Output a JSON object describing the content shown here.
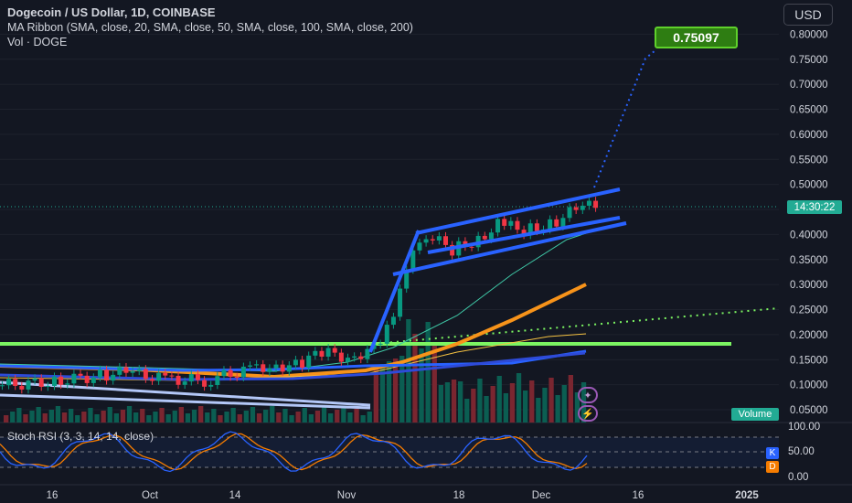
{
  "header": {
    "title": "Dogecoin / US Dollar, 1D, COINBASE",
    "ma_ribbon": "MA Ribbon (SMA, close, 20, SMA, close, 50, SMA, close, 100, SMA, close, 200)",
    "vol": "Vol · DOGE"
  },
  "currency_button": "USD",
  "target_label": "0.75097",
  "current_time_label": "14:30:22",
  "volume_label": "Volume",
  "stoch_rsi": {
    "label": "Stoch RSI (3, 3, 14, 14, close)",
    "k_label": "K",
    "d_label": "D",
    "ticks": [
      "100.00",
      "50.00",
      "0.00"
    ],
    "k_color": "#2962ff",
    "d_color": "#f57c00"
  },
  "colors": {
    "up": "#089981",
    "down": "#f23645",
    "channel": "#2962ff",
    "green_line": "#7cf562",
    "orange_ma": "#f7931a"
  },
  "icons": [
    "sparkle-icon",
    "lightning-icon"
  ],
  "chart_data": {
    "type": "line",
    "title": "Dogecoin / US Dollar, 1D, COINBASE",
    "y_ticks": [
      "0.80000",
      "0.75000",
      "0.70000",
      "0.65000",
      "0.60000",
      "0.55000",
      "0.50000",
      "0.45000",
      "0.40000",
      "0.35000",
      "0.30000",
      "0.25000",
      "0.20000",
      "0.15000",
      "0.10000",
      "0.05000"
    ],
    "x_ticks": [
      "16",
      "Oct",
      "14",
      "Nov",
      "18",
      "Dec",
      "16",
      "2025"
    ],
    "ylim": [
      0.0,
      0.82
    ],
    "target_price": 0.75097,
    "price_series": [
      {
        "date": "2024-09-08",
        "close": 0.098
      },
      {
        "date": "2024-09-16",
        "close": 0.105
      },
      {
        "date": "2024-09-24",
        "close": 0.118
      },
      {
        "date": "2024-09-28",
        "close": 0.125
      },
      {
        "date": "2024-10-04",
        "close": 0.112
      },
      {
        "date": "2024-10-10",
        "close": 0.108
      },
      {
        "date": "2024-10-16",
        "close": 0.128
      },
      {
        "date": "2024-10-20",
        "close": 0.138
      },
      {
        "date": "2024-10-24",
        "close": 0.138
      },
      {
        "date": "2024-10-28",
        "close": 0.165
      },
      {
        "date": "2024-11-01",
        "close": 0.155
      },
      {
        "date": "2024-11-05",
        "close": 0.17
      },
      {
        "date": "2024-11-08",
        "close": 0.23
      },
      {
        "date": "2024-11-11",
        "close": 0.38
      },
      {
        "date": "2024-11-13",
        "close": 0.4
      },
      {
        "date": "2024-11-17",
        "close": 0.37
      },
      {
        "date": "2024-11-21",
        "close": 0.39
      },
      {
        "date": "2024-11-24",
        "close": 0.42
      },
      {
        "date": "2024-11-28",
        "close": 0.41
      },
      {
        "date": "2024-12-02",
        "close": 0.42
      },
      {
        "date": "2024-12-06",
        "close": 0.45
      },
      {
        "date": "2024-12-09",
        "close": 0.46
      }
    ],
    "lines": [
      {
        "name": "green-horizontal",
        "color": "#7cf562",
        "points": [
          [
            "2024-09-01",
            0.18
          ],
          [
            "2025-01-01",
            0.18
          ]
        ]
      },
      {
        "name": "green-dotted-projection",
        "color": "#7cf562",
        "points": [
          [
            "2024-11-08",
            0.18
          ],
          [
            "2025-01-01",
            0.25
          ]
        ]
      },
      {
        "name": "orange-ma",
        "color": "#f7931a",
        "points": [
          [
            "2024-09-01",
            0.108
          ],
          [
            "2024-10-01",
            0.104
          ],
          [
            "2024-11-01",
            0.118
          ],
          [
            "2024-11-20",
            0.2
          ],
          [
            "2024-12-10",
            0.298
          ]
        ]
      },
      {
        "name": "blue-ma",
        "color": "#2962ff",
        "points": [
          [
            "2024-09-01",
            0.138
          ],
          [
            "2024-10-14",
            0.133
          ],
          [
            "2024-11-08",
            0.135
          ],
          [
            "2024-12-14",
            0.162
          ]
        ]
      }
    ]
  }
}
